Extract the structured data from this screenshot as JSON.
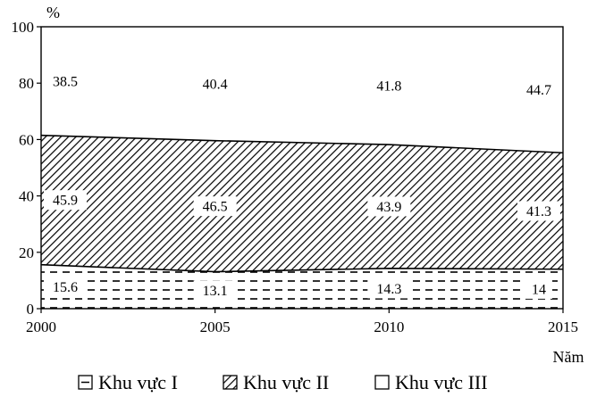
{
  "chart_data": {
    "type": "area",
    "stacked": true,
    "x": [
      2000,
      2005,
      2010,
      2015
    ],
    "series": [
      {
        "name": "Khu vực I",
        "values": [
          15.6,
          13.1,
          14.3,
          14
        ],
        "labels": [
          "15.6",
          "13.1",
          "14.3",
          "14"
        ],
        "pattern": "dashed"
      },
      {
        "name": "Khu vực II",
        "values": [
          45.9,
          46.5,
          43.9,
          41.3
        ],
        "labels": [
          "45.9",
          "46.5",
          "43.9",
          "41.3"
        ],
        "pattern": "hatched"
      },
      {
        "name": "Khu vực III",
        "values": [
          38.5,
          40.4,
          41.8,
          44.7
        ],
        "labels": [
          "38.5",
          "40.4",
          "41.8",
          "44.7"
        ],
        "pattern": "blank"
      }
    ],
    "ylabel": "%",
    "xlabel": "Năm",
    "ylim": [
      0,
      100
    ],
    "yticks": [
      0,
      20,
      40,
      60,
      80,
      100
    ],
    "xtick_labels": [
      "2000",
      "2005",
      "2010",
      "2015"
    ],
    "ytick_labels": [
      "0",
      "20",
      "40",
      "60",
      "80",
      "100"
    ],
    "legend": {
      "position": "bottom",
      "entries": [
        "Khu vực I",
        "Khu vực II",
        "Khu vực III"
      ]
    }
  }
}
